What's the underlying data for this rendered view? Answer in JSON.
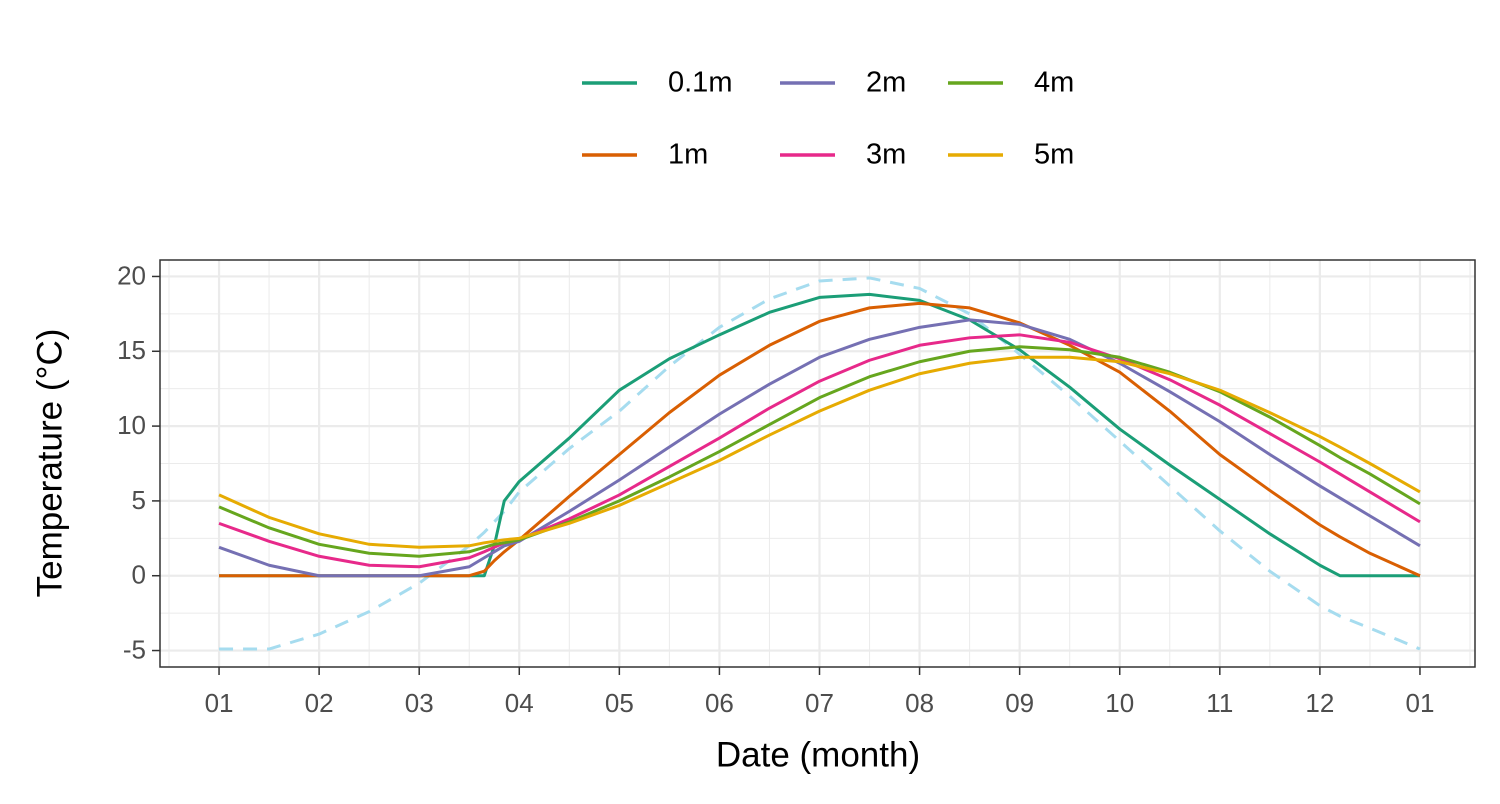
{
  "chart_data": {
    "type": "line",
    "xlabel": "Date (month)",
    "ylabel": "Temperature (°C)",
    "legend": "top",
    "grid": true,
    "x": [
      0,
      0.5,
      1,
      1.5,
      2,
      2.5,
      2.65,
      2.75,
      2.85,
      3,
      3.5,
      4,
      4.5,
      5,
      5.5,
      6,
      6.5,
      7,
      7.5,
      8,
      8.5,
      9,
      9.5,
      10,
      10.5,
      11,
      11.2,
      11.5,
      12
    ],
    "xlim": [
      -0.59,
      12.55
    ],
    "xticks": [
      {
        "value": 0,
        "label": "01"
      },
      {
        "value": 1,
        "label": "02"
      },
      {
        "value": 2,
        "label": "03"
      },
      {
        "value": 3,
        "label": "04"
      },
      {
        "value": 4,
        "label": "05"
      },
      {
        "value": 5,
        "label": "06"
      },
      {
        "value": 6,
        "label": "07"
      },
      {
        "value": 7,
        "label": "08"
      },
      {
        "value": 8,
        "label": "09"
      },
      {
        "value": 9,
        "label": "10"
      },
      {
        "value": 10,
        "label": "11"
      },
      {
        "value": 11,
        "label": "12"
      },
      {
        "value": 12,
        "label": "01"
      }
    ],
    "ylim": [
      -6.1,
      21.1
    ],
    "yticks": [
      -5,
      0,
      5,
      10,
      15,
      20
    ],
    "series": [
      {
        "name": "0.1m",
        "color": "#1b9e77",
        "values": [
          0,
          0,
          0,
          0,
          0,
          0,
          0,
          2,
          5,
          6.3,
          9.2,
          12.4,
          14.5,
          16.1,
          17.6,
          18.6,
          18.8,
          18.4,
          17.1,
          15.1,
          12.6,
          9.8,
          7.4,
          5.1,
          2.8,
          0.7,
          0,
          0,
          0
        ]
      },
      {
        "name": "1m",
        "color": "#d95f02",
        "values": [
          0,
          0,
          0,
          0,
          0,
          0,
          0.3,
          1.0,
          1.6,
          2.4,
          5.3,
          8.1,
          10.9,
          13.4,
          15.4,
          17.0,
          17.9,
          18.2,
          17.9,
          16.9,
          15.4,
          13.6,
          11.0,
          8.1,
          5.7,
          3.4,
          2.6,
          1.5,
          0
        ]
      },
      {
        "name": "2m",
        "color": "#7570b3",
        "values": [
          1.9,
          0.7,
          0,
          0,
          0,
          0.6,
          1.2,
          1.6,
          2.0,
          2.3,
          4.3,
          6.4,
          8.6,
          10.8,
          12.8,
          14.6,
          15.8,
          16.6,
          17.1,
          16.8,
          15.8,
          14.2,
          12.3,
          10.3,
          8.1,
          6.0,
          5.2,
          4.0,
          2.0
        ]
      },
      {
        "name": "3m",
        "color": "#e7298a",
        "values": [
          3.5,
          2.3,
          1.3,
          0.7,
          0.6,
          1.2,
          1.6,
          1.9,
          2.2,
          2.4,
          3.8,
          5.4,
          7.3,
          9.2,
          11.2,
          13.0,
          14.4,
          15.4,
          15.9,
          16.1,
          15.6,
          14.5,
          13.1,
          11.4,
          9.5,
          7.6,
          6.8,
          5.6,
          3.6
        ]
      },
      {
        "name": "4m",
        "color": "#66a61e",
        "values": [
          4.6,
          3.2,
          2.1,
          1.5,
          1.3,
          1.6,
          1.9,
          2.1,
          2.2,
          2.4,
          3.6,
          5.0,
          6.6,
          8.3,
          10.1,
          11.9,
          13.3,
          14.3,
          15.0,
          15.3,
          15.1,
          14.6,
          13.6,
          12.3,
          10.6,
          8.7,
          7.9,
          6.8,
          4.8
        ]
      },
      {
        "name": "5m",
        "color": "#e6ab02",
        "values": [
          5.4,
          3.9,
          2.8,
          2.1,
          1.9,
          2.0,
          2.2,
          2.3,
          2.4,
          2.5,
          3.5,
          4.7,
          6.2,
          7.7,
          9.4,
          11.0,
          12.4,
          13.5,
          14.2,
          14.6,
          14.6,
          14.3,
          13.5,
          12.4,
          10.9,
          9.3,
          8.6,
          7.5,
          5.6
        ]
      },
      {
        "color": "#a6dcef",
        "dash": true,
        "values": [
          -4.9,
          -4.9,
          -3.9,
          -2.4,
          -0.5,
          2.0,
          2.9,
          3.6,
          4.3,
          5.6,
          8.5,
          11.0,
          14.0,
          16.6,
          18.5,
          19.7,
          19.9,
          19.2,
          17.5,
          14.8,
          12.0,
          9.0,
          6.0,
          3.0,
          0.3,
          -2.0,
          -2.7,
          -3.5,
          -4.9
        ]
      }
    ]
  }
}
